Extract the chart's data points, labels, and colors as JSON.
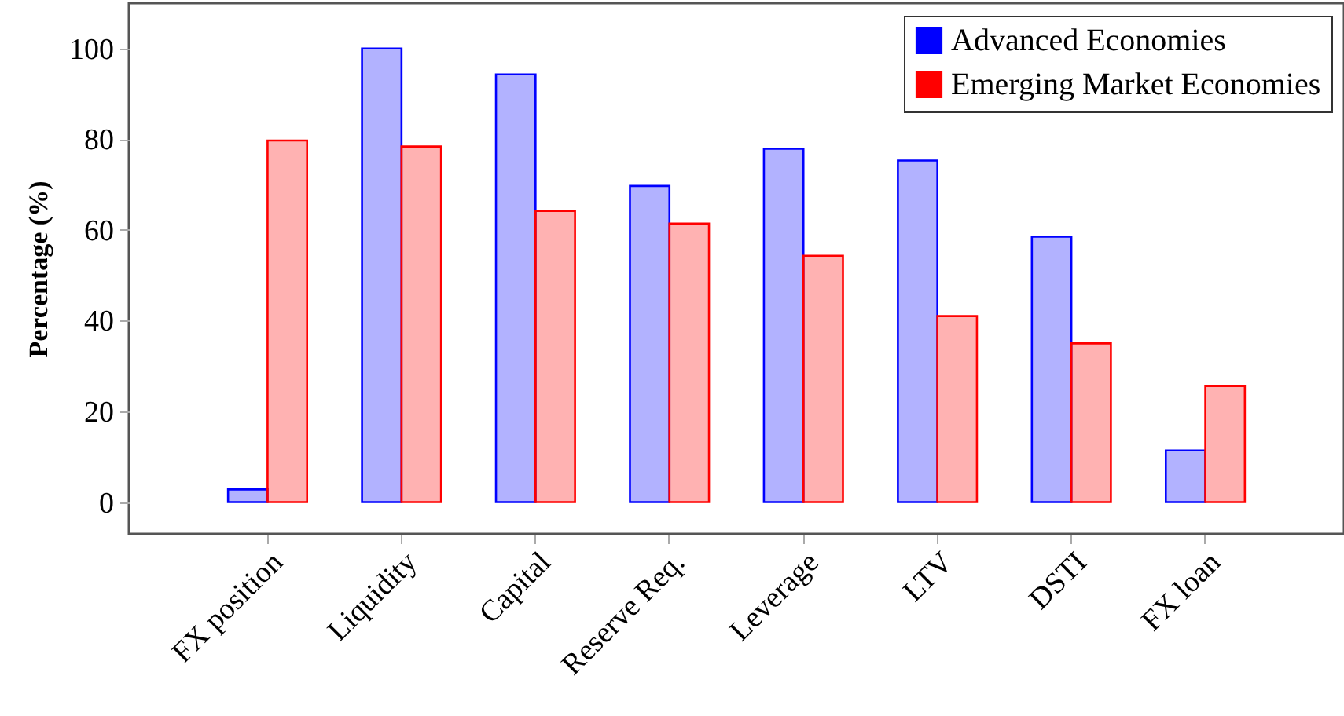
{
  "chart_data": {
    "type": "bar",
    "ylabel": "Percentage (%)",
    "categories": [
      "FX position",
      "Liquidity",
      "Capital",
      "Reserve Req.",
      "Leverage",
      "LTV",
      "DSTI",
      "FX loan"
    ],
    "series": [
      {
        "name": "Advanced Economies",
        "color": "#0000ff",
        "values": [
          2.8,
          100,
          94.3,
          69.7,
          77.9,
          75.3,
          58.5,
          11.4
        ]
      },
      {
        "name": "Emerging Market Economies",
        "color": "#ff0000",
        "values": [
          79.7,
          78.4,
          64.2,
          61.4,
          54.3,
          41,
          35,
          25.6
        ]
      }
    ],
    "ylim": [
      -7,
      110
    ],
    "yticks": [
      0,
      20,
      40,
      60,
      80,
      100
    ],
    "legend": "top right"
  }
}
